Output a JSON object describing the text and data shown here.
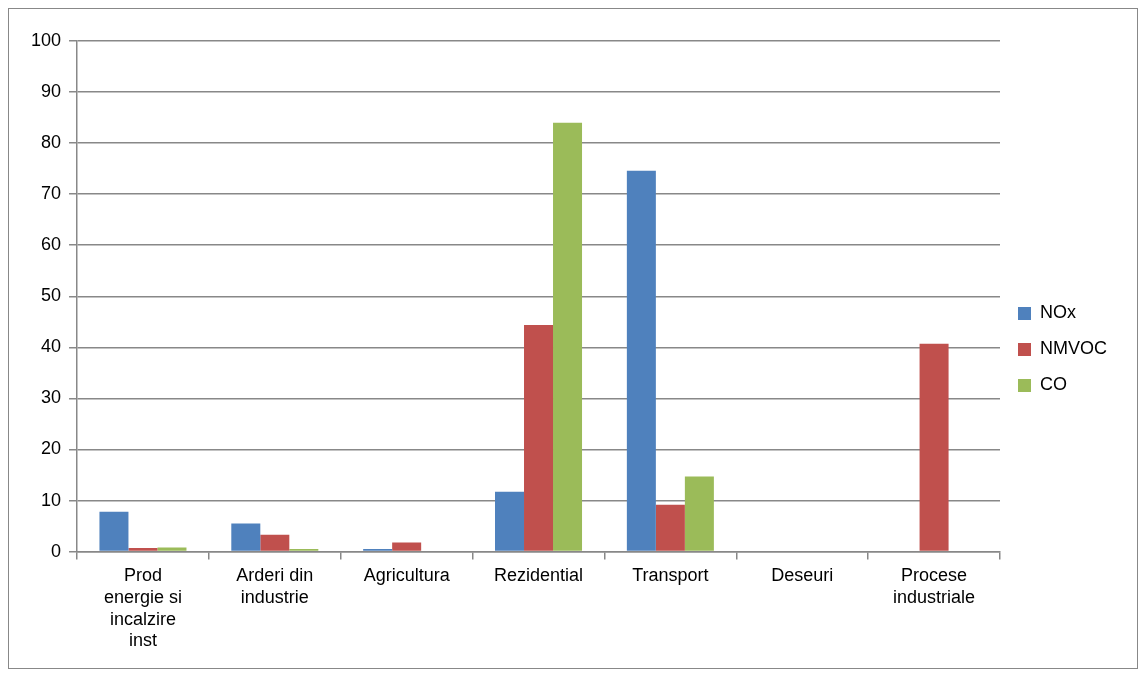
{
  "chart_data": {
    "type": "bar",
    "categories": [
      "Prod energie si incalzire inst",
      "Arderi din industrie",
      "Agricultura",
      "Rezidential",
      "Transport",
      "Deseuri",
      "Procese industriale"
    ],
    "series": [
      {
        "name": "NOx",
        "color": "#4f81bd",
        "values": [
          7.8,
          5.5,
          0.5,
          11.7,
          74.6,
          0,
          0
        ]
      },
      {
        "name": "NMVOC",
        "color": "#c0504d",
        "values": [
          0.7,
          3.3,
          1.8,
          44.4,
          9.2,
          0,
          40.7
        ]
      },
      {
        "name": "CO",
        "color": "#9bbb59",
        "values": [
          0.8,
          0.5,
          0,
          84,
          14.7,
          0,
          0
        ]
      }
    ],
    "ylim": [
      0,
      100
    ],
    "yticks": [
      0,
      10,
      20,
      30,
      40,
      50,
      60,
      70,
      80,
      90,
      100
    ],
    "grid": "y",
    "legend": "right"
  }
}
